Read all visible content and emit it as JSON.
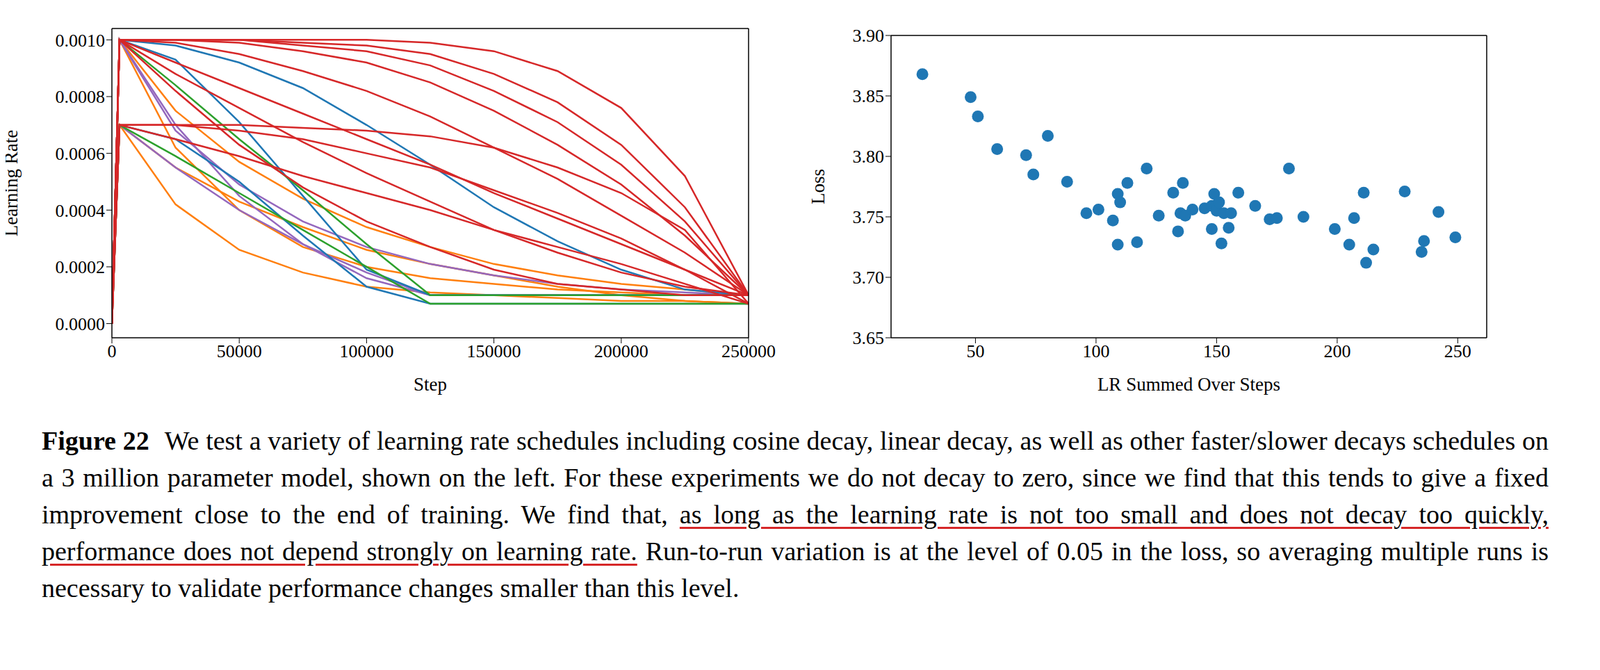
{
  "chart_data": [
    {
      "type": "line",
      "xlabel": "Step",
      "ylabel": "Learning Rate",
      "xlim": [
        0,
        250000
      ],
      "xticks": [
        0,
        50000,
        100000,
        150000,
        200000,
        250000
      ],
      "ylim": [
        -5e-05,
        0.00104
      ],
      "yticks": [
        {
          "value": 0,
          "label": "0.0000"
        },
        {
          "value": 0.0002,
          "label": "0.0002"
        },
        {
          "value": 0.0004,
          "label": "0.0004"
        },
        {
          "value": 0.0006,
          "label": "0.0006"
        },
        {
          "value": 0.0008,
          "label": "0.0008"
        },
        {
          "value": 0.001,
          "label": "0.0010"
        }
      ],
      "grid": false,
      "x": [
        0,
        3000,
        25000,
        50000,
        75000,
        100000,
        125000,
        150000,
        175000,
        200000,
        225000,
        250000
      ],
      "series": [
        {
          "color": "#ff7f0e",
          "values": [
            0,
            0.001,
            0.00062,
            0.0004,
            0.00027,
            0.0002,
            0.00016,
            0.00014,
            0.00012,
            0.00011,
            0.0001,
            0.0001
          ]
        },
        {
          "color": "#ff7f0e",
          "values": [
            0,
            0.0007,
            0.00042,
            0.00026,
            0.00018,
            0.00013,
            0.00011,
            0.0001,
            9e-05,
            8e-05,
            8e-05,
            7e-05
          ]
        },
        {
          "color": "#ff7f0e",
          "values": [
            0,
            0.001,
            0.00075,
            0.00057,
            0.00044,
            0.00034,
            0.00027,
            0.00021,
            0.00017,
            0.00014,
            0.00012,
            0.0001
          ]
        },
        {
          "color": "#ff7f0e",
          "values": [
            0,
            0.0007,
            0.00055,
            0.00043,
            0.00034,
            0.00026,
            0.00021,
            0.00017,
            0.00013,
            0.0001,
            8e-05,
            7e-05
          ]
        },
        {
          "color": "#9467bd",
          "values": [
            0,
            0.001,
            0.00068,
            0.00049,
            0.00036,
            0.00027,
            0.00021,
            0.00017,
            0.00014,
            0.00012,
            0.00011,
            0.0001
          ]
        },
        {
          "color": "#9467bd",
          "values": [
            0,
            0.0007,
            0.00055,
            0.0004,
            0.00028,
            0.00018,
            0.0001,
            0.0001,
            0.0001,
            0.0001,
            0.0001,
            0.0001
          ]
        },
        {
          "color": "#9467bd",
          "values": [
            0,
            0.001,
            0.0007,
            0.00045,
            0.00028,
            0.00016,
            0.0001,
            0.0001,
            0.0001,
            0.0001,
            0.0001,
            0.0001
          ]
        },
        {
          "color": "#1f77b4",
          "values": [
            0,
            0.001,
            0.00098,
            0.00092,
            0.00083,
            0.0007,
            0.00056,
            0.00041,
            0.00029,
            0.00019,
            0.00012,
            0.0001
          ]
        },
        {
          "color": "#1f77b4",
          "values": [
            0,
            0.001,
            0.00093,
            0.00071,
            0.00045,
            0.00019,
            0.0001,
            0.0001,
            0.0001,
            0.0001,
            0.0001,
            0.0001
          ]
        },
        {
          "color": "#1f77b4",
          "values": [
            0,
            0.0007,
            0.00065,
            0.0005,
            0.00031,
            0.00013,
            7e-05,
            7e-05,
            7e-05,
            7e-05,
            7e-05,
            7e-05
          ]
        },
        {
          "color": "#2ca02c",
          "values": [
            0,
            0.001,
            0.00084,
            0.00065,
            0.00047,
            0.00028,
            0.0001,
            0.0001,
            0.0001,
            0.0001,
            0.0001,
            0.0001
          ]
        },
        {
          "color": "#2ca02c",
          "values": [
            0,
            0.0007,
            0.00059,
            0.00046,
            0.00033,
            0.0002,
            7e-05,
            7e-05,
            7e-05,
            7e-05,
            7e-05,
            7e-05
          ]
        },
        {
          "color": "#d62728",
          "values": [
            0,
            0.001,
            0.001,
            0.001,
            0.001,
            0.001,
            0.00099,
            0.00096,
            0.00089,
            0.00076,
            0.00052,
            0.0001
          ]
        },
        {
          "color": "#d62728",
          "values": [
            0,
            0.001,
            0.001,
            0.001,
            0.00099,
            0.00098,
            0.00095,
            0.00088,
            0.00078,
            0.00063,
            0.00041,
            0.0001
          ]
        },
        {
          "color": "#d62728",
          "values": [
            0,
            0.001,
            0.001,
            0.001,
            0.00098,
            0.00096,
            0.00091,
            0.00082,
            0.00071,
            0.00056,
            0.00036,
            0.0001
          ]
        },
        {
          "color": "#d62728",
          "values": [
            0,
            0.001,
            0.001,
            0.00099,
            0.00096,
            0.00092,
            0.00085,
            0.00075,
            0.00063,
            0.00049,
            0.00031,
            0.0001
          ]
        },
        {
          "color": "#d62728",
          "values": [
            0,
            0.001,
            0.00099,
            0.00095,
            0.00089,
            0.00082,
            0.00073,
            0.00062,
            0.00051,
            0.00038,
            0.00025,
            0.0001
          ]
        },
        {
          "color": "#d62728",
          "values": [
            0,
            0.001,
            0.00092,
            0.00083,
            0.00074,
            0.00065,
            0.00056,
            0.00046,
            0.00037,
            0.00028,
            0.00019,
            0.0001
          ]
        },
        {
          "color": "#d62728",
          "values": [
            0,
            0.001,
            0.00088,
            0.00076,
            0.00064,
            0.00053,
            0.00043,
            0.00033,
            0.00025,
            0.00018,
            0.00013,
            0.0001
          ]
        },
        {
          "color": "#d62728",
          "values": [
            0,
            0.001,
            0.00082,
            0.00063,
            0.00048,
            0.00036,
            0.00027,
            0.00019,
            0.00014,
            0.00012,
            0.0001,
            0.0001
          ]
        },
        {
          "color": "#d62728",
          "values": [
            0,
            0.0007,
            0.0007,
            0.0007,
            0.00069,
            0.00068,
            0.00066,
            0.00062,
            0.00055,
            0.00046,
            0.00033,
            7e-05
          ]
        },
        {
          "color": "#d62728",
          "values": [
            0,
            0.0007,
            0.0007,
            0.00068,
            0.00065,
            0.0006,
            0.00055,
            0.00047,
            0.00039,
            0.0003,
            0.00019,
            7e-05
          ]
        },
        {
          "color": "#d62728",
          "values": [
            0,
            0.0007,
            0.00065,
            0.00059,
            0.00052,
            0.00046,
            0.0004,
            0.00033,
            0.00027,
            0.00021,
            0.00014,
            7e-05
          ]
        }
      ]
    },
    {
      "type": "scatter",
      "xlabel": "LR Summed Over Steps",
      "ylabel": "Loss",
      "xlim": [
        15,
        262
      ],
      "xticks": [
        50,
        100,
        150,
        200,
        250
      ],
      "ylim": [
        3.65,
        3.9
      ],
      "yticks": [
        3.65,
        {
          "value": 3.7,
          "label": "3.70"
        },
        3.75,
        {
          "value": 3.8,
          "label": "3.80"
        },
        3.85,
        {
          "value": 3.9,
          "label": "3.90"
        }
      ],
      "grid": false,
      "color": "#1f77b4",
      "marker": "circle",
      "x": [
        28,
        48,
        51,
        59,
        71,
        74,
        80,
        88,
        96,
        101,
        107,
        109,
        109,
        110,
        113,
        117,
        121,
        126,
        132,
        134,
        135,
        136,
        137,
        140,
        145,
        148,
        148,
        149,
        150,
        150,
        151,
        152,
        153,
        155,
        156,
        159,
        166,
        172,
        175,
        180,
        186,
        199,
        205,
        207,
        211,
        212,
        215,
        228,
        235,
        236,
        242,
        249
      ],
      "values": [
        3.868,
        3.849,
        3.833,
        3.806,
        3.801,
        3.785,
        3.817,
        3.779,
        3.753,
        3.756,
        3.747,
        3.727,
        3.769,
        3.762,
        3.778,
        3.729,
        3.79,
        3.751,
        3.77,
        3.738,
        3.753,
        3.778,
        3.751,
        3.756,
        3.757,
        3.74,
        3.759,
        3.769,
        3.76,
        3.755,
        3.762,
        3.728,
        3.753,
        3.741,
        3.753,
        3.77,
        3.759,
        3.748,
        3.749,
        3.79,
        3.75,
        3.74,
        3.727,
        3.749,
        3.77,
        3.712,
        3.723,
        3.771,
        3.721,
        3.73,
        3.754,
        3.733
      ]
    }
  ],
  "caption": {
    "label": "Figure 22",
    "text_before": "We test a variety of learning rate schedules including cosine decay, linear decay, as well as other faster/slower decays schedules on a 3 million parameter model, shown on the left. For these experiments we do not decay to zero, since we find that this tends to give a fixed improvement close to the end of training. We find that,",
    "highlighted": "as long as the learning rate is not too small and does not decay too quickly, performance does not depend strongly on learning rate.",
    "text_after": "Run-to-run variation is at the level of 0.05 in the loss, so averaging multiple runs is necessary to validate performance changes smaller than this level."
  }
}
